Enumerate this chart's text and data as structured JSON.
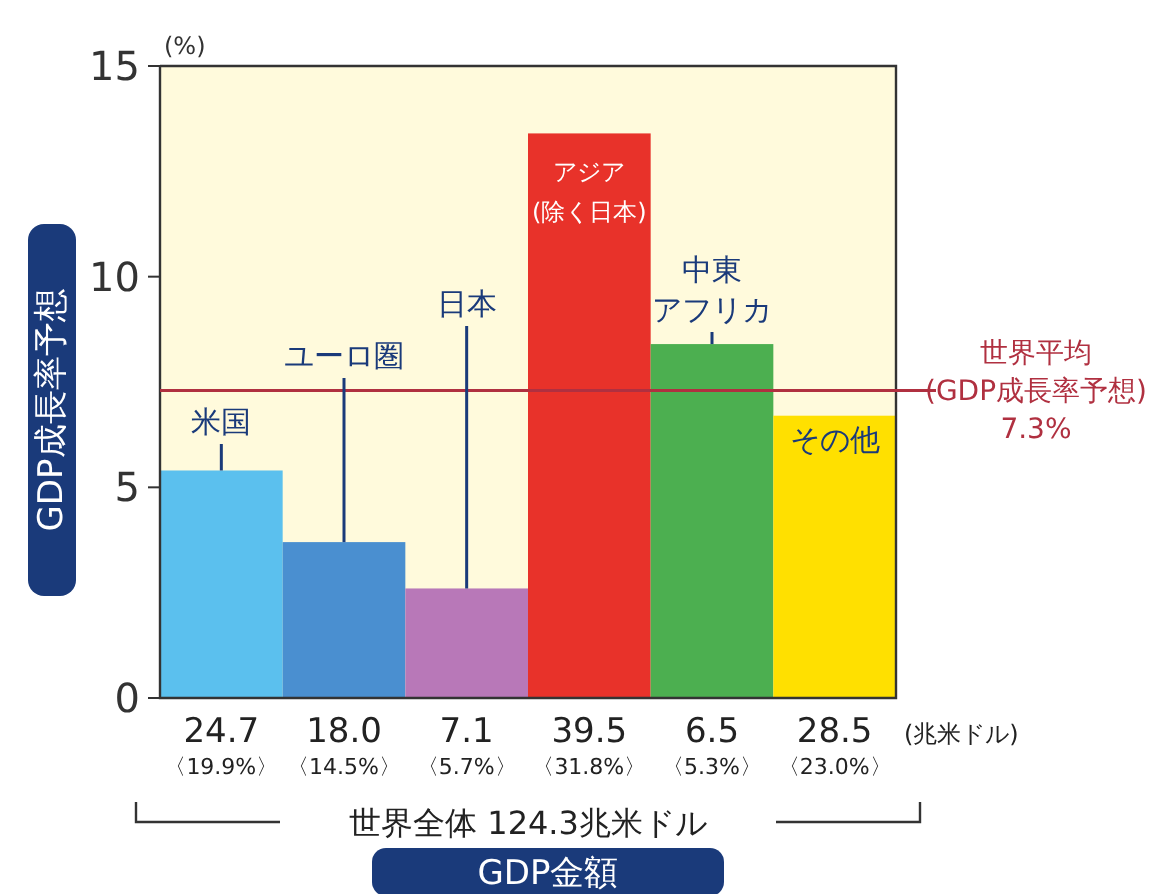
{
  "chart_data": {
    "type": "bar",
    "ylabel": "GDP成長率予想",
    "xlabel": "GDP金額",
    "categories": [
      "24.7\n〈19.9%〉",
      "18.0\n〈14.5%〉",
      "7.1\n〈5.7%〉",
      "39.5\n〈31.8%〉",
      "6.5\n〈5.3%〉",
      "28.5\n〈23.0%〉"
    ],
    "values": [
      5.4,
      3.7,
      2.6,
      13.4,
      8.4,
      6.7
    ],
    "colors": [
      "#5bc0ee",
      "#4a8fd0",
      "#b878b8",
      "#e8322a",
      "#4caf50",
      "#ffe000"
    ],
    "ylim": [
      0,
      15
    ],
    "yticks": [
      0,
      5,
      10,
      15
    ],
    "ref_lines": [
      {
        "axis": "y",
        "value": 7.3,
        "label": "世界平均\n(GDP成長率予想)\n7.3%",
        "color": "#b03040"
      }
    ],
    "annotations": [
      "(%)",
      "(兆米ドル)",
      "世界全体 124.3兆米ドル",
      {
        "text": "米国",
        "x": "24.7\n〈19.9%〉",
        "y": 5.4
      },
      {
        "text": "ユーロ圏",
        "x": "18.0\n〈14.5%〉",
        "y": 3.7
      },
      {
        "text": "日本",
        "x": "7.1\n〈5.7%〉",
        "y": 2.6
      },
      {
        "text": "アジア(除く日本)",
        "x": "39.5\n〈31.8%〉",
        "y": 13.4
      },
      {
        "text": "中東アフリカ",
        "x": "6.5\n〈5.3%〉",
        "y": 8.4
      },
      {
        "text": "その他",
        "x": "28.5\n〈23.0%〉",
        "y": 6.7
      }
    ]
  }
}
